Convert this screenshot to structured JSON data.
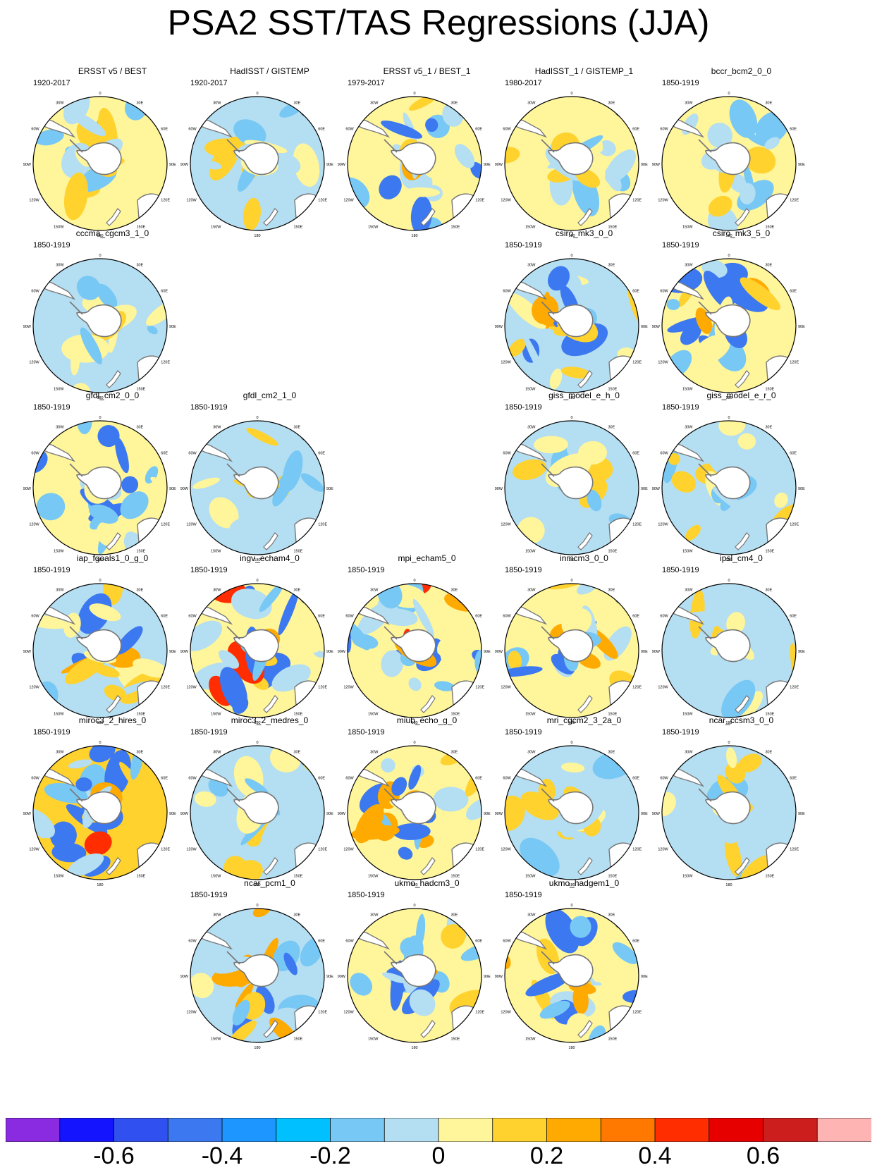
{
  "title": "PSA2 SST/TAS Regressions (JJA)",
  "map_labels": {
    "lon_top": "0",
    "lon_30e": "30E",
    "lon_60e": "60E",
    "lon_90e": "90E",
    "lon_120e": "120E",
    "lon_150e": "150E",
    "lon_bottom": "180",
    "lon_30w": "30W",
    "lon_60w": "60W",
    "lon_90w": "90W",
    "lon_120w": "120W",
    "lon_150w": "150W"
  },
  "panels": [
    {
      "title": "ERSST v5 / BEST",
      "years": "1920-2017",
      "row": 0,
      "col": 0,
      "base": "light-yellow",
      "seed": 1,
      "intensity": 1
    },
    {
      "title": "HadISST / GISTEMP",
      "years": "1920-2017",
      "row": 0,
      "col": 1,
      "base": "light-blue",
      "seed": 2,
      "intensity": 1
    },
    {
      "title": "ERSST v5_1 / BEST_1",
      "years": "1979-2017",
      "row": 0,
      "col": 2,
      "base": "light-yellow",
      "seed": 3,
      "intensity": 2
    },
    {
      "title": "HadISST_1 / GISTEMP_1",
      "years": "1980-2017",
      "row": 0,
      "col": 3,
      "base": "light-yellow",
      "seed": 4,
      "intensity": 1
    },
    {
      "title": "bccr_bcm2_0_0",
      "years": "1850-1919",
      "row": 0,
      "col": 4,
      "base": "light-yellow",
      "seed": 5,
      "intensity": 1
    },
    {
      "title": "cccma_cgcm3_1_0",
      "years": "1850-1919",
      "row": 1,
      "col": 0,
      "base": "light-blue",
      "seed": 6,
      "intensity": 1
    },
    {
      "title": "csiro_mk3_0_0",
      "years": "1850-1919",
      "row": 1,
      "col": 3,
      "base": "light-blue",
      "seed": 7,
      "intensity": 2
    },
    {
      "title": "csiro_mk3_5_0",
      "years": "1850-1919",
      "row": 1,
      "col": 4,
      "base": "light-yellow",
      "seed": 8,
      "intensity": 2
    },
    {
      "title": "gfdl_cm2_0_0",
      "years": "1850-1919",
      "row": 2,
      "col": 0,
      "base": "light-yellow",
      "seed": 9,
      "intensity": 2
    },
    {
      "title": "gfdl_cm2_1_0",
      "years": "1850-1919",
      "row": 2,
      "col": 1,
      "base": "light-blue",
      "seed": 10,
      "intensity": 1
    },
    {
      "title": "giss_model_e_h_0",
      "years": "1850-1919",
      "row": 2,
      "col": 3,
      "base": "light-blue",
      "seed": 11,
      "intensity": 1
    },
    {
      "title": "giss_model_e_r_0",
      "years": "1850-1919",
      "row": 2,
      "col": 4,
      "base": "light-blue",
      "seed": 12,
      "intensity": 1
    },
    {
      "title": "iap_fgoals1_0_g_0",
      "years": "1850-1919",
      "row": 3,
      "col": 0,
      "base": "light-blue",
      "seed": 13,
      "intensity": 2
    },
    {
      "title": "ingv_echam4_0",
      "years": "1850-1919",
      "row": 3,
      "col": 1,
      "base": "light-yellow",
      "seed": 14,
      "intensity": 3
    },
    {
      "title": "mpi_echam5_0",
      "years": "1850-1919",
      "row": 3,
      "col": 2,
      "base": "light-yellow",
      "seed": 15,
      "intensity": 3
    },
    {
      "title": "inmcm3_0_0",
      "years": "1850-1919",
      "row": 3,
      "col": 3,
      "base": "light-yellow",
      "seed": 16,
      "intensity": 2
    },
    {
      "title": "ipsl_cm4_0",
      "years": "1850-1919",
      "row": 3,
      "col": 4,
      "base": "light-blue",
      "seed": 17,
      "intensity": 1
    },
    {
      "title": "miroc3_2_hires_0",
      "years": "1850-1919",
      "row": 4,
      "col": 0,
      "base": "yellow",
      "seed": 18,
      "intensity": 3
    },
    {
      "title": "miroc3_2_medres_0",
      "years": "1850-1919",
      "row": 4,
      "col": 1,
      "base": "light-blue",
      "seed": 19,
      "intensity": 1
    },
    {
      "title": "miub_echo_g_0",
      "years": "1850-1919",
      "row": 4,
      "col": 2,
      "base": "light-yellow",
      "seed": 20,
      "intensity": 2
    },
    {
      "title": "mri_cgcm2_3_2a_0",
      "years": "1850-1919",
      "row": 4,
      "col": 3,
      "base": "light-blue",
      "seed": 21,
      "intensity": 1
    },
    {
      "title": "ncar_ccsm3_0_0",
      "years": "1850-1919",
      "row": 4,
      "col": 4,
      "base": "light-blue",
      "seed": 22,
      "intensity": 1
    },
    {
      "title": "ncar_pcm1_0",
      "years": "1850-1919",
      "row": 5,
      "col": 1,
      "base": "light-blue",
      "seed": 23,
      "intensity": 2
    },
    {
      "title": "ukmo_hadcm3_0",
      "years": "1850-1919",
      "row": 5,
      "col": 2,
      "base": "light-yellow",
      "seed": 24,
      "intensity": 2
    },
    {
      "title": "ukmo_hadgem1_0",
      "years": "1850-1919",
      "row": 5,
      "col": 3,
      "base": "light-yellow",
      "seed": 25,
      "intensity": 2
    }
  ],
  "colorbar": {
    "colors": [
      "#8a2be2",
      "#1414ff",
      "#3050f0",
      "#3c78f0",
      "#1e96ff",
      "#00c0ff",
      "#78c8f5",
      "#b4def2",
      "#fff59a",
      "#ffd22e",
      "#ffaa00",
      "#ff7800",
      "#ff2d00",
      "#e60000",
      "#cd1e1e",
      "#ffb4b4"
    ],
    "labels": [
      "-0.6",
      "-0.4",
      "-0.2",
      "0",
      "0.2",
      "0.4",
      "0.6"
    ],
    "label_box_index": [
      1,
      3,
      5,
      7,
      9,
      11,
      13
    ]
  },
  "palette": {
    "light-blue": "#b4def2",
    "blue": "#78c8f5",
    "deep-blue": "#3c78f0",
    "light-yellow": "#fff59a",
    "yellow": "#ffd22e",
    "orange": "#ffaa00",
    "red": "#ff2d00",
    "land": "#ffffff",
    "coast": "#777777"
  }
}
